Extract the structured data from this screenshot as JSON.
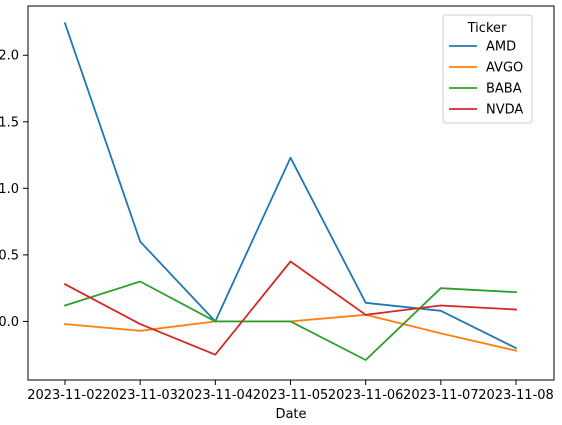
{
  "chart_data": {
    "type": "line",
    "title": "",
    "xlabel": "Date",
    "ylabel": "",
    "x": [
      "2023-11-02",
      "2023-11-03",
      "2023-11-04",
      "2023-11-05",
      "2023-11-06",
      "2023-11-07",
      "2023-11-08"
    ],
    "ylim": [
      -0.44,
      2.37
    ],
    "yticks": [
      0.0,
      0.5,
      1.0,
      1.5,
      2.0
    ],
    "ytick_labels": [
      "0.0",
      "0.5",
      "1.0",
      "1.5",
      "2.0"
    ],
    "grid": false,
    "legend": {
      "title": "Ticker",
      "position": "top-right"
    },
    "series": [
      {
        "name": "AMD",
        "color": "#1f77b4",
        "values": [
          2.24,
          0.6,
          0.0,
          1.23,
          0.14,
          0.08,
          -0.2
        ]
      },
      {
        "name": "AVGO",
        "color": "#ff7f0e",
        "values": [
          -0.02,
          -0.07,
          0.0,
          0.0,
          0.05,
          -0.09,
          -0.22
        ]
      },
      {
        "name": "BABA",
        "color": "#2ca02c",
        "values": [
          0.12,
          0.3,
          0.0,
          0.0,
          -0.29,
          0.25,
          0.22
        ]
      },
      {
        "name": "NVDA",
        "color": "#d62728",
        "values": [
          0.28,
          -0.02,
          -0.25,
          0.45,
          0.05,
          0.12,
          0.09
        ]
      }
    ]
  }
}
